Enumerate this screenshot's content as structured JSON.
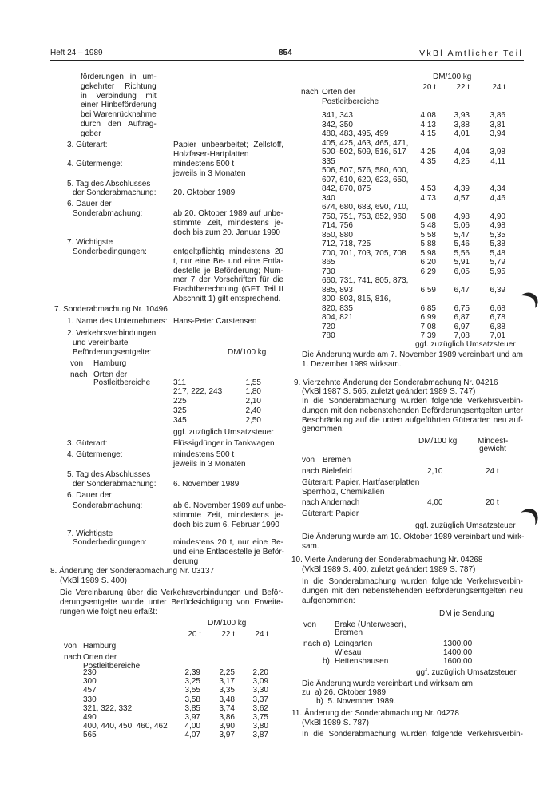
{
  "header": {
    "issue": "Heft 24 – 1989",
    "page": "854",
    "journal": "VkBl Amtlicher Teil"
  },
  "left": {
    "cont_lines": [
      "förderungen in um-",
      "gekehrter Richtung",
      "in Verbindung mit",
      "einer Hinbeförderung",
      "bei Warenrücknahme",
      "durch den Auftrag-",
      "geber"
    ],
    "s6": {
      "i3_label": "3. Güterart:",
      "i3_value": [
        "Papier unbearbeitet; Zellstoff,",
        "Holzfaser-Hartplatten"
      ],
      "i4_label": "4. Gütermenge:",
      "i4_value": [
        "mindestens 500 t",
        "jeweils in 3 Monaten"
      ],
      "i5_label": [
        "5. Tag des Abschlusses",
        "der Sonderabmachung:"
      ],
      "i5_value": "20. Oktober 1989",
      "i6_label": [
        "6. Dauer der",
        "Sonderabmachung:"
      ],
      "i6_value": [
        "ab 20. Oktober 1989 auf unbe-",
        "stimmte Zeit, mindestens je-",
        "doch bis zum 20. Januar 1990"
      ],
      "i7_label": [
        "7. Wichtigste",
        "Sonderbedingungen:"
      ],
      "i7_value": [
        "entgeltpflichtig mindestens 20",
        "t, nur eine Be- und eine Entla-",
        "destelle je Beförderung; Num-",
        "mer 7 der Vorschriften für die",
        "Frachtberechnung (GFT Teil II",
        "Abschnitt 1) gilt entsprechend."
      ]
    },
    "s7": {
      "title": "7. Sonderabmachung Nr. 10496",
      "i1_label": "1. Name des Unternehmers:",
      "i1_value": "Hans-Peter Carstensen",
      "i2_label": [
        "2. Verkehrsverbindungen",
        "und vereinbarte",
        "Beförderungsentgelte:"
      ],
      "unit": "DM/100 kg",
      "von": "von",
      "from": "Hamburg",
      "nach": "nach",
      "to": "Orten der",
      "plb": "Postleitbereiche",
      "rows": [
        {
          "code": "311",
          "value": "1,55"
        },
        {
          "code": "217, 222, 243",
          "value": "1,80"
        },
        {
          "code": "225",
          "value": "2,10"
        },
        {
          "code": "325",
          "value": "2,40"
        },
        {
          "code": "345",
          "value": "2,50"
        }
      ],
      "tax": "ggf. zuzüglich Umsatzsteuer",
      "i3_label": "3. Güterart:",
      "i3_value": "Flüssigdünger in Tankwagen",
      "i4_label": "4. Gütermenge:",
      "i4_value": [
        "mindestens 500 t",
        "jeweils in 3 Monaten"
      ],
      "i5_label": [
        "5. Tag des Abschlusses",
        "der Sonderabmachung:"
      ],
      "i5_value": "6. November 1989",
      "i6_label": [
        "6. Dauer der",
        "Sonderabmachung:"
      ],
      "i6_value": [
        "ab 6. November 1989 auf unbe-",
        "stimmte Zeit, mindestens je-",
        "doch bis zum 6. Februar 1990"
      ],
      "i7_label": [
        "7. Wichtigste",
        "Sonderbedingungen:"
      ],
      "i7_value": [
        "mindestens 20 t, nur eine Be-",
        "und eine Entladestelle je Beför-",
        "derung"
      ]
    },
    "s8": {
      "title": "8. Änderung der Sonderabmachung Nr. 03137",
      "ref": "(VkBl 1989 S. 400)",
      "para": [
        "Die Vereinbarung über die Verkehrsverbindungen und Beför-",
        "derungsentgelte wurde unter Berücksichtigung von Erweite-",
        "rungen wie folgt neu erfaßt:"
      ],
      "unit": "DM/100 kg",
      "cols": [
        "20 t",
        "22 t",
        "24 t"
      ],
      "von": "von",
      "from": "Hamburg",
      "nach": "nach",
      "to": "Orten der",
      "plb": "Postleitbereiche",
      "rows": [
        {
          "code": "230",
          "v": [
            "2,39",
            "2,25",
            "2,20"
          ]
        },
        {
          "code": "300",
          "v": [
            "3,25",
            "3,17",
            "3,09"
          ]
        },
        {
          "code": "457",
          "v": [
            "3,55",
            "3,35",
            "3,30"
          ]
        },
        {
          "code": "330",
          "v": [
            "3,58",
            "3,48",
            "3,37"
          ]
        },
        {
          "code": "321, 322, 332",
          "v": [
            "3,85",
            "3,74",
            "3,62"
          ]
        },
        {
          "code": "490",
          "v": [
            "3,97",
            "3,86",
            "3,75"
          ]
        },
        {
          "code": "400, 440, 450, 460, 462",
          "v": [
            "4,00",
            "3,90",
            "3,80"
          ]
        },
        {
          "code": "565",
          "v": [
            "4,07",
            "3,97",
            "3,87"
          ]
        }
      ]
    }
  },
  "right": {
    "s8cont": {
      "unit": "DM/100 kg",
      "cols": [
        "20 t",
        "22 t",
        "24 t"
      ],
      "nach": "nach",
      "to": "Orten der",
      "plb": "Postleitbereiche",
      "rows": [
        {
          "code": "341, 343",
          "v": [
            "4,08",
            "3,93",
            "3,86"
          ]
        },
        {
          "code": "342, 350",
          "v": [
            "4,13",
            "3,88",
            "3,81"
          ]
        },
        {
          "code": "480, 483, 495, 499",
          "v": [
            "4,15",
            "4,01",
            "3,94"
          ]
        },
        {
          "code": "405, 425, 463, 465, 471,",
          "v": [
            "",
            "",
            ""
          ]
        },
        {
          "code": "500–502, 509, 516, 517",
          "v": [
            "4,25",
            "4,04",
            "3,98"
          ]
        },
        {
          "code": "335",
          "v": [
            "4,35",
            "4,25",
            "4,11"
          ]
        },
        {
          "code": "506, 507, 576, 580, 600,",
          "v": [
            "",
            "",
            ""
          ]
        },
        {
          "code": "607, 610, 620, 623, 650,",
          "v": [
            "",
            "",
            ""
          ]
        },
        {
          "code": "842, 870, 875",
          "v": [
            "4,53",
            "4,39",
            "4,34"
          ]
        },
        {
          "code": "340",
          "v": [
            "4,73",
            "4,57",
            "4,46"
          ]
        },
        {
          "code": "674, 680, 683, 690, 710,",
          "v": [
            "",
            "",
            ""
          ]
        },
        {
          "code": "750, 751, 753, 852, 960",
          "v": [
            "5,08",
            "4,98",
            "4,90"
          ]
        },
        {
          "code": "714, 756",
          "v": [
            "5,48",
            "5,06",
            "4,98"
          ]
        },
        {
          "code": "850, 880",
          "v": [
            "5,58",
            "5,47",
            "5,35"
          ]
        },
        {
          "code": "712, 718, 725",
          "v": [
            "5,88",
            "5,46",
            "5,38"
          ]
        },
        {
          "code": "700, 701, 703, 705, 708",
          "v": [
            "5,98",
            "5,56",
            "5,48"
          ]
        },
        {
          "code": "865",
          "v": [
            "6,20",
            "5,91",
            "5,79"
          ]
        },
        {
          "code": "730",
          "v": [
            "6,29",
            "6,05",
            "5,95"
          ]
        },
        {
          "code": "660, 731, 741, 805, 873,",
          "v": [
            "",
            "",
            ""
          ]
        },
        {
          "code": "885, 893",
          "v": [
            "6,59",
            "6,47",
            "6,39"
          ]
        },
        {
          "code": "800–803, 815, 816,",
          "v": [
            "",
            "",
            ""
          ]
        },
        {
          "code": "820, 835",
          "v": [
            "6,85",
            "6,75",
            "6,68"
          ]
        },
        {
          "code": "804, 821",
          "v": [
            "6,99",
            "6,87",
            "6,78"
          ]
        },
        {
          "code": "720",
          "v": [
            "7,08",
            "6,97",
            "6,88"
          ]
        },
        {
          "code": "780",
          "v": [
            "7,39",
            "7,08",
            "7,01"
          ]
        }
      ],
      "tax": "ggf. zuzüglich Umsatzsteuer",
      "note": [
        "Die Änderung wurde am 7. November 1989 vereinbart und am",
        "1. Dezember 1989 wirksam."
      ]
    },
    "s9": {
      "title": "9. Vierzehnte Änderung der Sonderabmachung Nr. 04216",
      "ref": "(VkBl 1987 S. 565, zuletzt geändert 1989 S. 747)",
      "para": [
        "In die Sonderabmachung wurden folgende Verkehrsverbin-",
        "dungen mit den nebenstehenden Beförderungsentgelten unter",
        "Beschränkung auf die unten aufgeführten Güterarten neu auf-",
        "genommen:"
      ],
      "unit": "DM/100 kg",
      "minw": [
        "Mindest-",
        "gewicht"
      ],
      "von": "von",
      "from": "Bremen",
      "dest1": "nach Bielefeld",
      "dest1_price": "2,10",
      "dest1_weight": "24 t",
      "goods1": [
        "Güterart: Papier, Hartfaserplatten",
        "Sperrholz, Chemikalien"
      ],
      "dest2": "nach Andernach",
      "dest2_price": "4,00",
      "dest2_weight": "20 t",
      "goods2": "Güterart: Papier",
      "tax": "ggf. zuzüglich Umsatzsteuer",
      "note": [
        "Die Änderung wurde am 10. Oktober 1989 vereinbart und wirk-",
        "sam."
      ]
    },
    "s10": {
      "title": "10. Vierte Änderung der Sonderabmachung Nr. 04268",
      "ref": "(VkBl 1989 S. 400, zuletzt geändert 1989 S. 787)",
      "para": [
        "In die Sonderabmachung wurden folgende Verkehrsverbin-",
        "dungen mit den nebenstehenden Beförderungsentgelten neu",
        "aufgenommen:"
      ],
      "unit": "DM je Sendung",
      "von": "von",
      "from": [
        "Brake (Unterweser),",
        "Bremen"
      ],
      "nach": "nach a)",
      "b": "b)",
      "rows": [
        {
          "dest": "Leingarten",
          "value": "1300,00"
        },
        {
          "dest": "Wiesau",
          "value": "1400,00"
        },
        {
          "dest": "Hettenshausen",
          "value": "1600,00"
        }
      ],
      "tax": "ggf. zuzüglich Umsatzsteuer",
      "note": "Die Änderung wurde vereinbart und wirksam am",
      "dates": [
        "zu  a) 26. Oktober 1989,",
        "b)  5. November 1989."
      ]
    },
    "s11": {
      "title": "11. Änderung der Sonderabmachung Nr. 04278",
      "ref": "(VkBl 1989 S. 787)",
      "para": "In die Sonderabmachung wurden folgende Verkehrsverbin-"
    }
  },
  "colors": {
    "ink": "#1a1a1a",
    "paper": "#ffffff"
  }
}
